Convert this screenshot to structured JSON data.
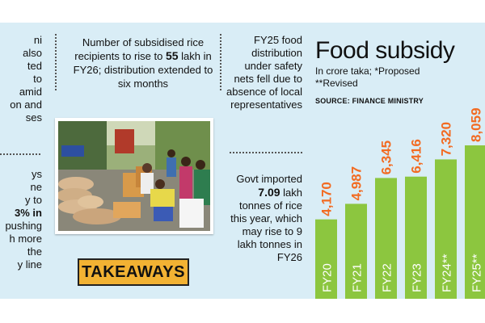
{
  "column1": {
    "top_lines": [
      "ni",
      "also",
      "ted",
      "to",
      "amid",
      "on and",
      "ses"
    ],
    "bottom_lines": [
      "ys",
      "ne",
      "y to",
      "3% in",
      "pushing",
      "h more",
      "the",
      "y line"
    ]
  },
  "column2": {
    "text_before": "Number of subsidised rice recipients to rise to ",
    "highlight": "55",
    "text_after": " lakh in FY26; distribution extended to six months"
  },
  "column3": {
    "top_text": "FY25 food distribution under safety nets fell due to absence of local representatives",
    "bottom_before": "Govt imported ",
    "bottom_highlight": "7.09",
    "bottom_after": " lakh tonnes of rice this year, which may rise to 9 lakh tonnes in FY26"
  },
  "badge": {
    "label": "TAKEAWAYS"
  },
  "chart": {
    "title": "Food subsidy",
    "subtitle_line1": "In crore taka; *Proposed",
    "subtitle_line2": "**Revised",
    "source": "SOURCE: FINANCE MINISTRY"
  },
  "chart_data": {
    "type": "bar",
    "title": "Food subsidy",
    "subtitle": "In crore taka; *Proposed **Revised",
    "categories": [
      "FY20",
      "FY21",
      "FY22",
      "FY23",
      "FY24**",
      "FY25**"
    ],
    "values": [
      4170,
      4987,
      6345,
      6416,
      7320,
      8059
    ],
    "value_labels": [
      "4,170",
      "4,987",
      "6,345",
      "6,416",
      "7,320",
      "8,059"
    ],
    "bar_color": "#8cc63f",
    "label_color": "#f26b22",
    "category_label_color": "#ffffff"
  },
  "colors": {
    "background": "#d9edf6",
    "badge": "#f2b233"
  }
}
